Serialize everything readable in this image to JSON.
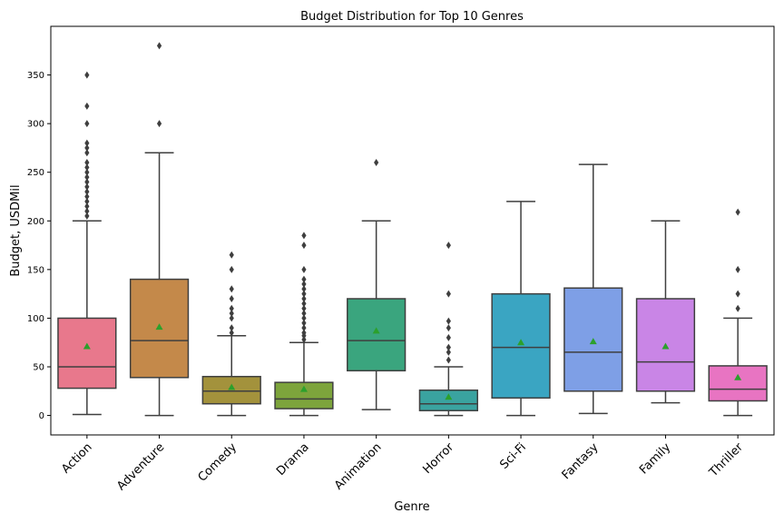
{
  "chart_data": {
    "type": "box",
    "title": "Budget Distribution for Top 10 Genres",
    "xlabel": "Genre",
    "ylabel": "Budget, USDMil",
    "ylim": [
      -20,
      400
    ],
    "yticks": [
      0,
      50,
      100,
      150,
      200,
      250,
      300,
      350
    ],
    "legend": "none",
    "grid": false,
    "mean_marker": "triangle",
    "mean_color": "#2ca02c",
    "categories": [
      "Action",
      "Adventure",
      "Comedy",
      "Drama",
      "Animation",
      "Horror",
      "Sci-Fi",
      "Fantasy",
      "Family",
      "Thriller"
    ],
    "boxes": [
      {
        "genre": "Action",
        "color": "#e8788c",
        "whisker_low": 1,
        "q1": 28,
        "median": 50,
        "q3": 100,
        "whisker_high": 200,
        "mean": 71,
        "outliers": [
          205,
          210,
          215,
          220,
          225,
          230,
          235,
          240,
          245,
          250,
          255,
          260,
          270,
          275,
          280,
          300,
          318,
          350
        ]
      },
      {
        "genre": "Adventure",
        "color": "#c4894a",
        "whisker_low": 0,
        "q1": 39,
        "median": 77,
        "q3": 140,
        "whisker_high": 270,
        "mean": 91,
        "outliers": [
          300,
          380
        ]
      },
      {
        "genre": "Comedy",
        "color": "#a3923c",
        "whisker_low": 0,
        "q1": 12,
        "median": 25,
        "q3": 40,
        "whisker_high": 82,
        "mean": 29,
        "outliers": [
          85,
          90,
          100,
          105,
          110,
          120,
          130,
          150,
          165
        ]
      },
      {
        "genre": "Drama",
        "color": "#7da43c",
        "whisker_low": 0,
        "q1": 7,
        "median": 17,
        "q3": 34,
        "whisker_high": 75,
        "mean": 27,
        "outliers": [
          78,
          82,
          85,
          90,
          95,
          100,
          105,
          110,
          115,
          120,
          125,
          130,
          135,
          140,
          150,
          175,
          185
        ]
      },
      {
        "genre": "Animation",
        "color": "#3aa57e",
        "whisker_low": 6,
        "q1": 46,
        "median": 77,
        "q3": 120,
        "whisker_high": 200,
        "mean": 87,
        "outliers": [
          260
        ]
      },
      {
        "genre": "Horror",
        "color": "#3aa3a0",
        "whisker_low": 0,
        "q1": 5,
        "median": 12,
        "q3": 26,
        "whisker_high": 50,
        "mean": 19,
        "outliers": [
          57,
          65,
          70,
          80,
          90,
          97,
          125,
          175
        ]
      },
      {
        "genre": "Sci-Fi",
        "color": "#3aa5c2",
        "whisker_low": 0,
        "q1": 18,
        "median": 70,
        "q3": 125,
        "whisker_high": 220,
        "mean": 75,
        "outliers": []
      },
      {
        "genre": "Fantasy",
        "color": "#7e9fe6",
        "whisker_low": 2,
        "q1": 25,
        "median": 65,
        "q3": 131,
        "whisker_high": 258,
        "mean": 76,
        "outliers": []
      },
      {
        "genre": "Family",
        "color": "#c985e6",
        "whisker_low": 13,
        "q1": 25,
        "median": 55,
        "q3": 120,
        "whisker_high": 200,
        "mean": 71,
        "outliers": []
      },
      {
        "genre": "Thriller",
        "color": "#e874c2",
        "whisker_low": 0,
        "q1": 15,
        "median": 27,
        "q3": 51,
        "whisker_high": 100,
        "mean": 39,
        "outliers": [
          110,
          125,
          150,
          209
        ]
      }
    ]
  }
}
